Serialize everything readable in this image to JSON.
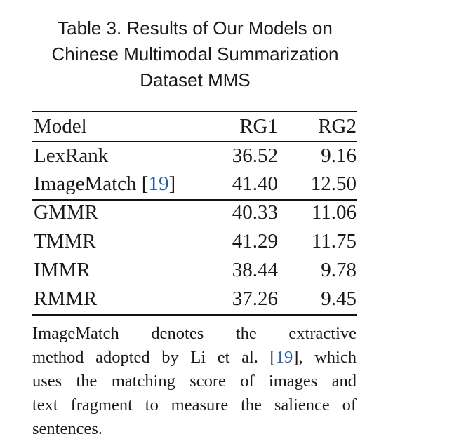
{
  "caption": {
    "line1": "Table 3.  Results of Our Models on",
    "line2": "Chinese Multimodal Summarization",
    "line3": "Dataset MMS"
  },
  "table": {
    "headers": [
      "Model",
      "RG1",
      "RG2"
    ],
    "rows": [
      {
        "model": "LexRank",
        "ref": "",
        "rg1": "36.52",
        "rg2": "9.16"
      },
      {
        "model": "ImageMatch [",
        "ref": "19",
        "ref_close": "]",
        "rg1": "41.40",
        "rg2": "12.50"
      },
      {
        "model": "GMMR",
        "ref": "",
        "rg1": "40.33",
        "rg2": "11.06"
      },
      {
        "model": "TMMR",
        "ref": "",
        "rg1": "41.29",
        "rg2": "11.75"
      },
      {
        "model": "IMMR",
        "ref": "",
        "rg1": "38.44",
        "rg2": "9.78"
      },
      {
        "model": "RMMR",
        "ref": "",
        "rg1": "37.26",
        "rg2": "9.45"
      }
    ]
  },
  "note": {
    "line1": "ImageMatch denotes the extractive",
    "line2_a": "method adopted by Li et al. [",
    "line2_ref": "19",
    "line2_b": "], which",
    "line3": "uses the matching score of images and",
    "line4": "text fragment to measure the salience of",
    "line5": "sentences."
  },
  "colors": {
    "text": "#1a1a1a",
    "reference_link": "#1f5fa8",
    "rules": "#111111"
  }
}
